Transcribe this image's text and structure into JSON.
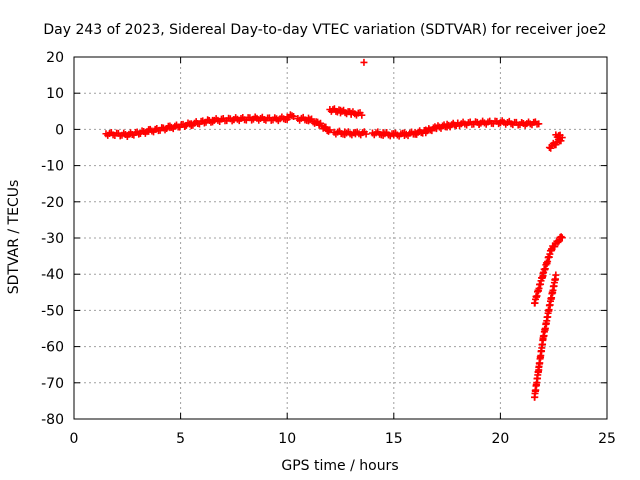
{
  "chart_data": {
    "type": "scatter",
    "title": "Day 243 of 2023, Sidereal Day-to-day VTEC variation (SDTVAR) for receiver joe2",
    "xlabel": "GPS time / hours",
    "ylabel": "SDTVAR / TECUs",
    "xlim": [
      0,
      25
    ],
    "ylim": [
      -80,
      20
    ],
    "xticks": [
      0,
      5,
      10,
      15,
      20,
      25
    ],
    "yticks": [
      20,
      10,
      0,
      -10,
      -20,
      -30,
      -40,
      -50,
      -60,
      -70,
      -80
    ],
    "grid": true,
    "marker": "+",
    "color": "#ff0000",
    "segments": [
      {
        "x": [
          1.5,
          2.5,
          3.5,
          4.5,
          5.5,
          6.5,
          7.5,
          8.5,
          9.5,
          10.0,
          10.3
        ],
        "y": [
          -1.2,
          -1.5,
          -0.5,
          0.5,
          1.5,
          2.5,
          2.8,
          3.0,
          2.8,
          3.2,
          4.0
        ]
      },
      {
        "x": [
          10.5,
          11.0,
          11.5,
          12.0
        ],
        "y": [
          3.0,
          2.8,
          1.5,
          -0.5
        ]
      },
      {
        "x": [
          12.0,
          12.5,
          13.0,
          13.5
        ],
        "y": [
          5.5,
          5.0,
          4.5,
          4.2
        ]
      },
      {
        "x": [
          12.2,
          12.7,
          13.2,
          13.7
        ],
        "y": [
          -0.8,
          -1.0,
          -1.2,
          -1.0
        ]
      },
      {
        "x": [
          14.0,
          14.5,
          15.0,
          15.5,
          16.0,
          16.5,
          17.0,
          17.5,
          18.0,
          19.0,
          20.0,
          21.0,
          21.8
        ],
        "y": [
          -1.0,
          -1.2,
          -1.5,
          -1.4,
          -1.0,
          -0.5,
          0.5,
          1.0,
          1.5,
          1.8,
          2.0,
          1.5,
          1.8
        ]
      },
      {
        "x": [
          13.6
        ],
        "y": [
          18.5
        ]
      },
      {
        "x": [
          22.3,
          22.6,
          22.9
        ],
        "y": [
          -5.0,
          -3.8,
          -2.5
        ]
      },
      {
        "x": [
          22.6,
          22.8
        ],
        "y": [
          -1.5,
          -2.0
        ]
      },
      {
        "x": [
          21.6,
          22.0,
          22.4,
          22.9
        ],
        "y": [
          -48.0,
          -40.0,
          -33.0,
          -29.5
        ]
      },
      {
        "x": [
          21.6,
          21.8,
          22.0,
          22.3,
          22.6
        ],
        "y": [
          -74.0,
          -66.0,
          -58.0,
          -49.0,
          -40.5
        ]
      }
    ]
  }
}
